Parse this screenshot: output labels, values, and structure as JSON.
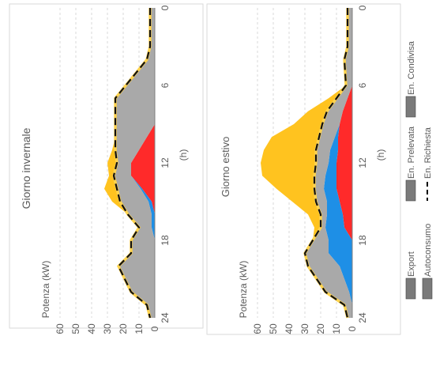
{
  "figure": {
    "orientation": "rotated-90-cw",
    "legend": {
      "placement": "bottom",
      "items": [
        {
          "label": "Export",
          "color": "#7f7f7f",
          "kind": "area"
        },
        {
          "label": "En. Prelevata",
          "color": "#7f7f7f",
          "kind": "area"
        },
        {
          "label": "En. Condivisa",
          "color": "#7f7f7f",
          "kind": "area"
        },
        {
          "label": "Autoconsumo",
          "color": "#7f7f7f",
          "kind": "area"
        },
        {
          "label": "En. Richiesta",
          "color": "#000000",
          "kind": "dashed-line"
        }
      ]
    }
  },
  "chart_data": [
    {
      "type": "area",
      "title": "Giorno invernale",
      "xlabel": "(h)",
      "ylabel": "Potenza (kW)",
      "xlim": [
        0,
        24
      ],
      "ylim": [
        0,
        70
      ],
      "xticks": [
        "0",
        "6",
        "12",
        "18",
        "24"
      ],
      "yticks": [
        "0",
        "10",
        "20",
        "30",
        "40",
        "50",
        "60"
      ],
      "grid": true,
      "x": [
        0,
        3,
        4,
        7,
        9,
        10,
        11,
        12,
        13,
        14,
        15,
        16,
        17,
        18,
        19,
        20,
        22,
        23,
        24
      ],
      "series": [
        {
          "name": "Autoconsumo",
          "color": "#ff2a2a",
          "values": [
            0,
            0,
            0,
            0,
            0,
            5,
            10,
            15,
            15,
            8,
            2,
            0,
            0,
            0,
            0,
            0,
            0,
            0,
            0
          ]
        },
        {
          "name": "En. Condivisa",
          "color": "#1e8fe6",
          "values": [
            0,
            0,
            0,
            0,
            0,
            0,
            0,
            0,
            0,
            1,
            2,
            2,
            2,
            0,
            0,
            0,
            0,
            0,
            0
          ]
        },
        {
          "name": "En. Prelevata",
          "color": "#a9a9a9",
          "values": [
            3,
            3,
            5,
            25,
            25,
            20,
            15,
            9,
            11,
            15,
            18,
            15,
            8,
            15,
            15,
            23,
            15,
            5,
            3
          ]
        },
        {
          "name": "Export",
          "color": "#ffc31f",
          "values": [
            0,
            0,
            0,
            0,
            0,
            0,
            2,
            6,
            3,
            8,
            5,
            0,
            0,
            0,
            0,
            0,
            0,
            0,
            0
          ]
        }
      ],
      "demand": [
        3,
        3,
        5,
        25,
        25,
        25,
        25,
        24,
        26,
        24,
        22,
        17,
        10,
        15,
        15,
        23,
        15,
        5,
        3
      ]
    },
    {
      "type": "area",
      "title": "Giorno estivo",
      "xlabel": "(h)",
      "ylabel": "Potenza (kW)",
      "xlim": [
        0,
        24
      ],
      "ylim": [
        0,
        70
      ],
      "xticks": [
        "0",
        "6",
        "12",
        "18",
        "24"
      ],
      "yticks": [
        "0",
        "10",
        "20",
        "30",
        "40",
        "50",
        "60"
      ],
      "grid": true,
      "x": [
        0,
        3,
        4,
        6,
        7,
        8,
        9,
        10,
        11,
        12,
        13,
        14,
        15,
        16,
        17,
        18,
        19,
        20,
        22,
        23,
        24
      ],
      "series": [
        {
          "name": "Autoconsumo",
          "color": "#ff2a2a",
          "values": [
            0,
            0,
            0,
            0,
            3,
            6,
            8,
            9,
            9,
            10,
            10,
            10,
            8,
            6,
            5,
            0,
            0,
            0,
            0,
            0,
            0
          ]
        },
        {
          "name": "En. Condivisa",
          "color": "#1e8fe6",
          "values": [
            0,
            0,
            0,
            0,
            0,
            0,
            0,
            2,
            5,
            5,
            7,
            8,
            8,
            10,
            12,
            15,
            15,
            8,
            2,
            0,
            0
          ]
        },
        {
          "name": "En. Prelevata",
          "color": "#a9a9a9",
          "values": [
            3,
            3,
            5,
            4,
            7,
            10,
            11,
            10,
            9,
            8,
            7,
            6,
            7,
            4,
            3,
            10,
            15,
            20,
            15,
            5,
            3
          ]
        },
        {
          "name": "Export",
          "color": "#ffc31f",
          "values": [
            0,
            0,
            0,
            0,
            5,
            12,
            18,
            30,
            33,
            35,
            33,
            24,
            15,
            8,
            4,
            0,
            0,
            0,
            0,
            0,
            0
          ]
        }
      ],
      "demand": [
        3,
        3,
        5,
        4,
        10,
        16,
        19,
        21,
        23,
        23,
        24,
        24,
        23,
        20,
        20,
        25,
        30,
        28,
        17,
        5,
        3
      ]
    }
  ]
}
